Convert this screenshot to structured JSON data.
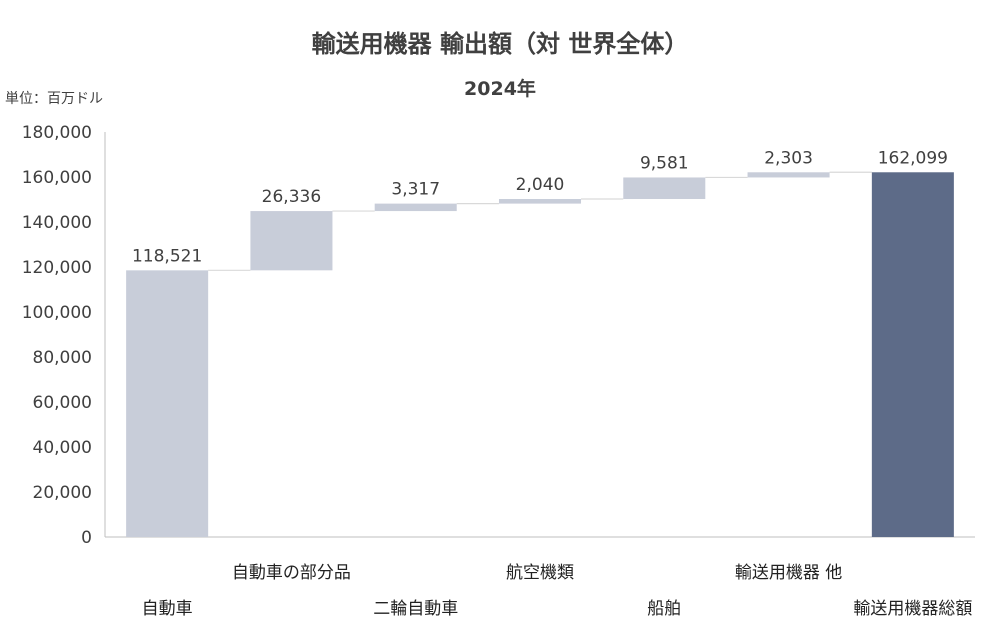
{
  "chart_data": {
    "type": "bar",
    "subtype": "waterfall",
    "title": "輸送用機器 輸出額（対 世界全体）",
    "subtitle": "2024年",
    "unit_label": "単位：百万ドル",
    "ylim": [
      0,
      180000
    ],
    "yticks": [
      0,
      20000,
      40000,
      60000,
      80000,
      100000,
      120000,
      140000,
      160000,
      180000
    ],
    "ytick_labels": [
      "0",
      "20,000",
      "40,000",
      "60,000",
      "80,000",
      "100,000",
      "120,000",
      "140,000",
      "160,000",
      "180,000"
    ],
    "categories": [
      "自動車",
      "自動車の部分品",
      "二輪自動車",
      "航空機類",
      "船舶",
      "輸送用機器 他",
      "輸送用機器総額"
    ],
    "values": [
      118521,
      26336,
      3317,
      2040,
      9581,
      2303,
      162099
    ],
    "value_labels": [
      "118,521",
      "26,336",
      "3,317",
      "2,040",
      "9,581",
      "2,303",
      "162,099"
    ],
    "bar_kind": [
      "base",
      "increment",
      "increment",
      "increment",
      "increment",
      "increment",
      "total"
    ],
    "colors": {
      "base": "#c8cdd9",
      "increment": "#c8cdd9",
      "total": "#5d6b88",
      "connector": "#d9d9d9",
      "axis": "#bfbfbf"
    },
    "grid": false,
    "legend": "none"
  }
}
